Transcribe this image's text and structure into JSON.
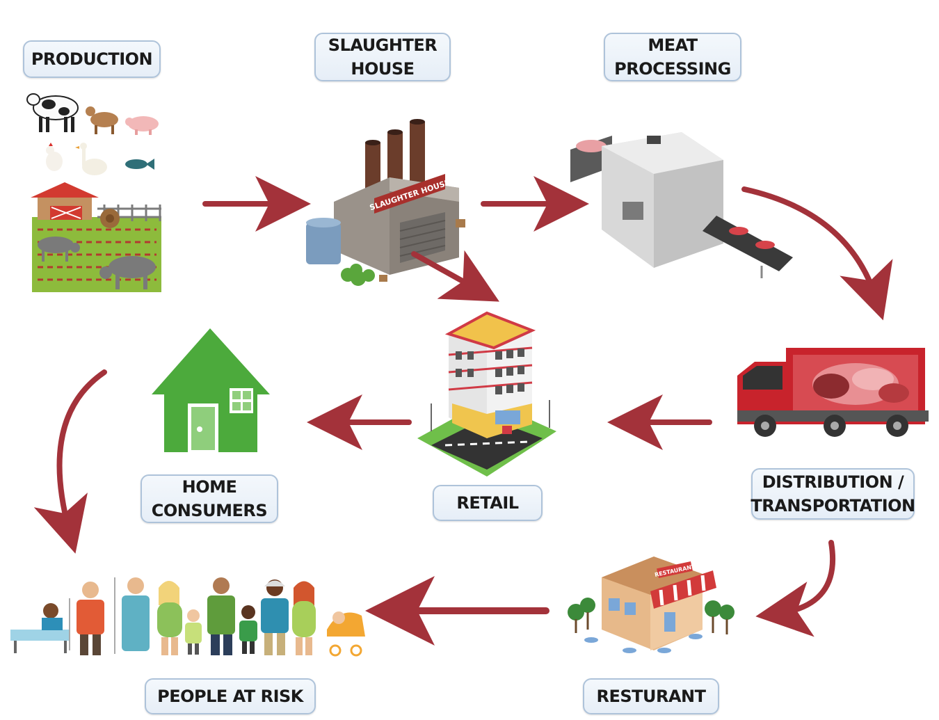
{
  "nodes": {
    "production": {
      "label": "PRODUCTION"
    },
    "slaughter_house": {
      "line1": "SLAUGHTER",
      "line2": "HOUSE",
      "sign": "SLAUGHTER HOUSE"
    },
    "meat_processing": {
      "line1": "MEAT",
      "line2": "PROCESSING"
    },
    "distribution": {
      "line1": "DISTRIBUTION /",
      "line2": "TRANSPORTATION"
    },
    "retail": {
      "label": "RETAIL"
    },
    "home_consumers": {
      "line1": "HOME",
      "line2": "CONSUMERS"
    },
    "resturant": {
      "label": "RESTURANT",
      "sign": "RESTAURANT"
    },
    "people_at_risk": {
      "label": "PEOPLE AT RISK"
    }
  },
  "edges": [
    {
      "from": "production",
      "to": "slaughter_house"
    },
    {
      "from": "slaughter_house",
      "to": "meat_processing"
    },
    {
      "from": "slaughter_house",
      "to": "retail"
    },
    {
      "from": "meat_processing",
      "to": "distribution"
    },
    {
      "from": "distribution",
      "to": "retail"
    },
    {
      "from": "retail",
      "to": "home_consumers"
    },
    {
      "from": "home_consumers",
      "to": "people_at_risk"
    },
    {
      "from": "distribution",
      "to": "resturant"
    },
    {
      "from": "resturant",
      "to": "people_at_risk"
    }
  ],
  "colors": {
    "arrow": "#a3323a",
    "label_border": "#aec3da",
    "house_green": "#4caa3c",
    "truck_red": "#c8232c"
  }
}
